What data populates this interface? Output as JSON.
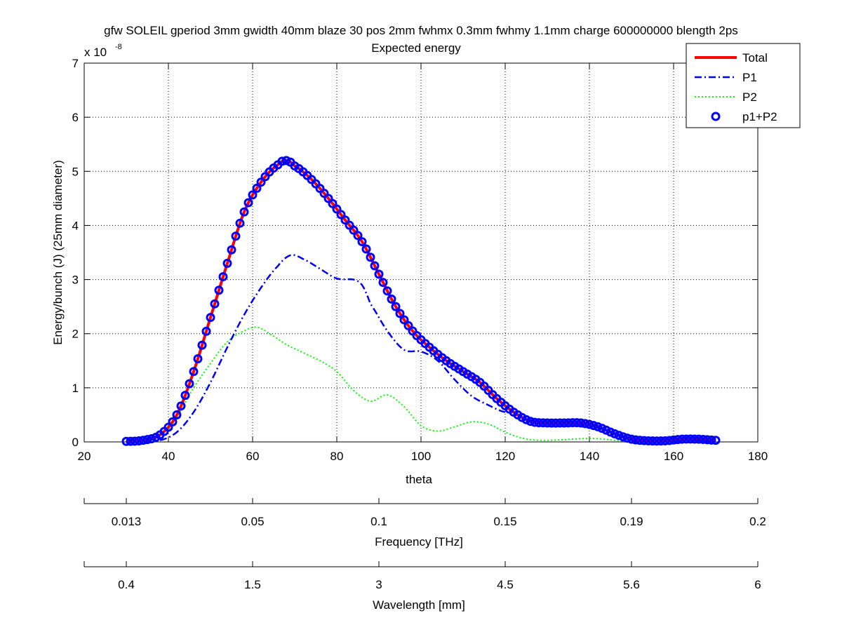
{
  "chart_data": {
    "type": "line",
    "title": "gfw SOLEIL gperiod 3mm gwidth 40mm blaze 30 pos 2mm fwhmx 0.3mm fwhmy 1.1mm charge 600000000 blength 2ps",
    "subtitle": "Expected energy",
    "xlabel": "theta",
    "ylabel": "Energy/bunch (J) (25mm diameter)",
    "y_exponent_label": "x 10",
    "y_exponent_power": "-8",
    "y_scale": 1e-08,
    "xlim": [
      20,
      180
    ],
    "ylim": [
      0,
      7
    ],
    "grid": true,
    "legend_position": "top-right",
    "x_ticks": [
      20,
      40,
      60,
      80,
      100,
      120,
      140,
      160,
      180
    ],
    "y_ticks": [
      0,
      1,
      2,
      3,
      4,
      5,
      6,
      7
    ],
    "x_tick_labels": [
      "20",
      "40",
      "60",
      "80",
      "100",
      "120",
      "140",
      "160",
      "180"
    ],
    "y_tick_labels": [
      "0",
      "1",
      "2",
      "3",
      "4",
      "5",
      "6",
      "7"
    ],
    "secondary_axes": [
      {
        "label": "Frequency [THz]",
        "tick_x": [
          20,
          30,
          60,
          90,
          120,
          150,
          180
        ],
        "tick_labels": [
          "",
          "0.013",
          "0.05",
          "0.1",
          "0.15",
          "0.19",
          "0.2"
        ]
      },
      {
        "label": "Wavelength [mm]",
        "tick_x": [
          20,
          30,
          60,
          90,
          120,
          150,
          180
        ],
        "tick_labels": [
          "",
          "0.4",
          "1.5",
          "3",
          "4.5",
          "5.6",
          "6"
        ]
      }
    ],
    "series": [
      {
        "name": "Total",
        "style": "solid",
        "color": "#ff0000",
        "knots": [
          [
            30,
            0.01
          ],
          [
            34,
            0.03
          ],
          [
            38,
            0.13
          ],
          [
            42,
            0.5
          ],
          [
            46,
            1.3
          ],
          [
            50,
            2.3
          ],
          [
            54,
            3.3
          ],
          [
            58,
            4.25
          ],
          [
            62,
            4.8
          ],
          [
            66,
            5.12
          ],
          [
            68,
            5.2
          ],
          [
            70,
            5.1
          ],
          [
            74,
            4.85
          ],
          [
            78,
            4.5
          ],
          [
            82,
            4.1
          ],
          [
            86,
            3.7
          ],
          [
            90,
            3.1
          ],
          [
            94,
            2.5
          ],
          [
            98,
            2.05
          ],
          [
            102,
            1.75
          ],
          [
            106,
            1.5
          ],
          [
            110,
            1.3
          ],
          [
            114,
            1.1
          ],
          [
            118,
            0.8
          ],
          [
            122,
            0.55
          ],
          [
            126,
            0.38
          ],
          [
            130,
            0.35
          ],
          [
            134,
            0.35
          ],
          [
            138,
            0.35
          ],
          [
            142,
            0.28
          ],
          [
            146,
            0.15
          ],
          [
            150,
            0.05
          ],
          [
            154,
            0.02
          ],
          [
            158,
            0.02
          ],
          [
            162,
            0.05
          ],
          [
            166,
            0.05
          ],
          [
            170,
            0.03
          ]
        ]
      },
      {
        "name": "P1",
        "style": "dashdot",
        "color": "#0000ff",
        "knots": [
          [
            38,
            0.03
          ],
          [
            42,
            0.18
          ],
          [
            46,
            0.55
          ],
          [
            50,
            1.1
          ],
          [
            54,
            1.75
          ],
          [
            58,
            2.35
          ],
          [
            62,
            2.85
          ],
          [
            66,
            3.25
          ],
          [
            69,
            3.45
          ],
          [
            72,
            3.38
          ],
          [
            76,
            3.2
          ],
          [
            80,
            3.02
          ],
          [
            84,
            3.0
          ],
          [
            86,
            2.9
          ],
          [
            88,
            2.55
          ],
          [
            92,
            2.05
          ],
          [
            96,
            1.7
          ],
          [
            100,
            1.67
          ],
          [
            104,
            1.5
          ],
          [
            108,
            1.15
          ],
          [
            112,
            0.85
          ],
          [
            116,
            0.68
          ],
          [
            120,
            0.55
          ]
        ]
      },
      {
        "name": "P2",
        "style": "dotted",
        "color": "#00ff00",
        "knots": [
          [
            38,
            0.03
          ],
          [
            42,
            0.45
          ],
          [
            46,
            1.0
          ],
          [
            50,
            1.45
          ],
          [
            54,
            1.85
          ],
          [
            58,
            2.05
          ],
          [
            61,
            2.12
          ],
          [
            64,
            2.0
          ],
          [
            68,
            1.8
          ],
          [
            72,
            1.65
          ],
          [
            76,
            1.5
          ],
          [
            80,
            1.3
          ],
          [
            84,
            0.95
          ],
          [
            88,
            0.75
          ],
          [
            92,
            0.87
          ],
          [
            96,
            0.65
          ],
          [
            100,
            0.3
          ],
          [
            104,
            0.2
          ],
          [
            108,
            0.28
          ],
          [
            112,
            0.37
          ],
          [
            116,
            0.33
          ],
          [
            120,
            0.18
          ],
          [
            124,
            0.07
          ],
          [
            128,
            0.03
          ],
          [
            134,
            0.04
          ],
          [
            138,
            0.06
          ],
          [
            142,
            0.06
          ],
          [
            146,
            0.03
          ],
          [
            150,
            0.01
          ]
        ]
      },
      {
        "name": "p1+P2",
        "style": "markers",
        "color": "#0000ff",
        "marker": "circle",
        "x_start": 30,
        "x_end": 170,
        "x_step": 1
      }
    ]
  }
}
